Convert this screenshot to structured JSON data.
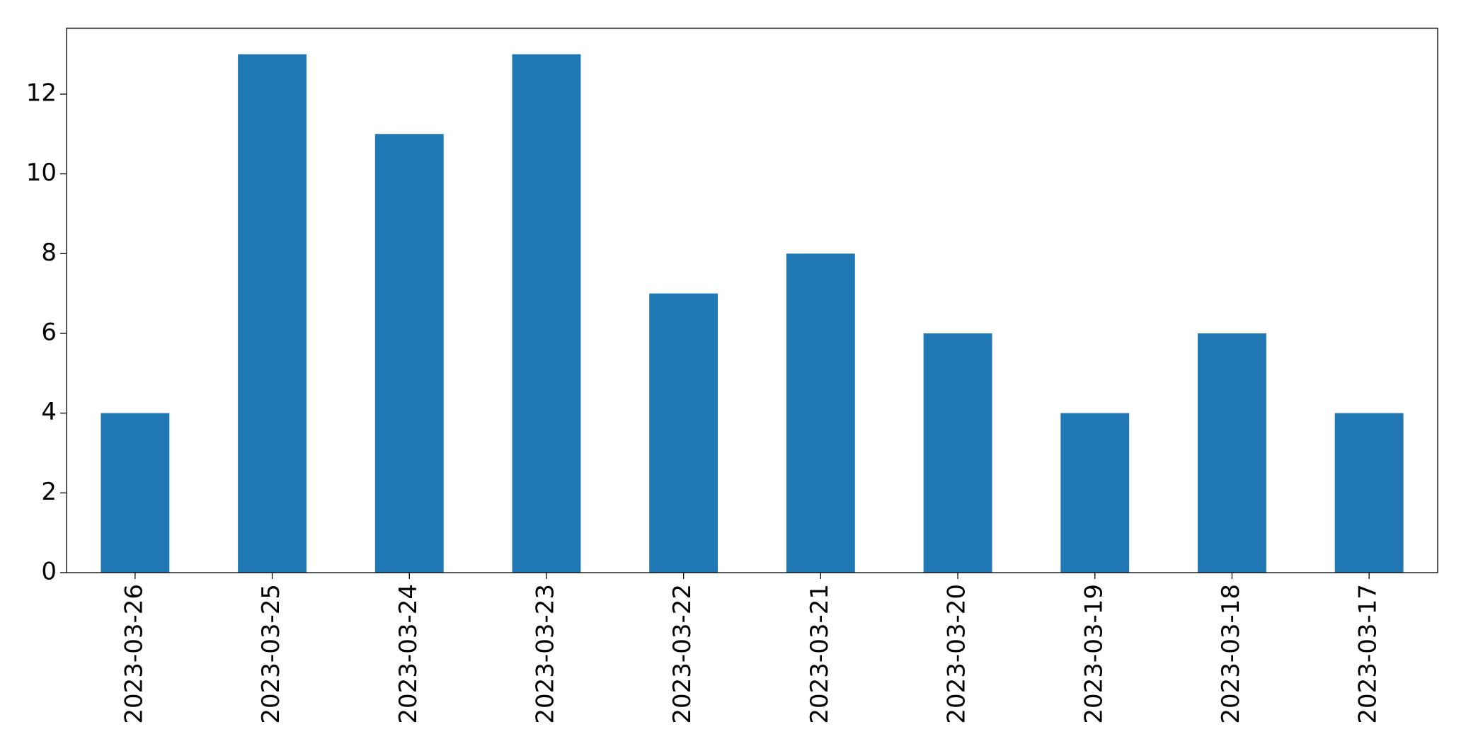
{
  "chart_data": {
    "type": "bar",
    "categories": [
      "2023-03-26",
      "2023-03-25",
      "2023-03-24",
      "2023-03-23",
      "2023-03-22",
      "2023-03-21",
      "2023-03-20",
      "2023-03-19",
      "2023-03-18",
      "2023-03-17"
    ],
    "values": [
      4,
      13,
      11,
      13,
      7,
      8,
      6,
      4,
      6,
      4
    ],
    "color": "#1f77b4",
    "ylim": [
      0,
      13.65
    ],
    "yticks": [
      0,
      2,
      4,
      6,
      8,
      10,
      12
    ],
    "grid": false
  }
}
